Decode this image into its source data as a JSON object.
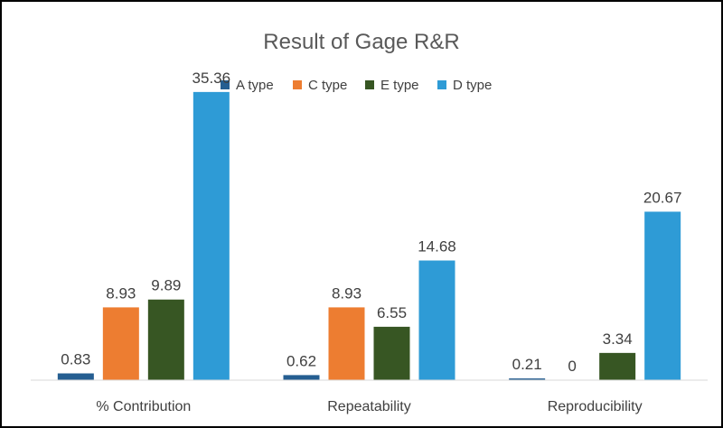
{
  "chart_data": {
    "type": "bar",
    "title": "Result of Gage R&R",
    "xlabel": "",
    "ylabel": "",
    "ylim": [
      0,
      40
    ],
    "grid": false,
    "legend": "top",
    "categories": [
      "% Contribution",
      "Repeatability",
      "Reproducibility"
    ],
    "series": [
      {
        "name": "A type",
        "color": "#255E91",
        "values": [
          0.83,
          0.62,
          0.21
        ],
        "labels": [
          "0.83",
          "0.62",
          "0.21"
        ]
      },
      {
        "name": "C type",
        "color": "#ED7D31",
        "values": [
          8.93,
          8.93,
          0
        ],
        "labels": [
          "8.93",
          "8.93",
          "0"
        ]
      },
      {
        "name": "E type",
        "color": "#375623",
        "values": [
          9.89,
          6.55,
          3.34
        ],
        "labels": [
          "9.89",
          "6.55",
          "3.34"
        ]
      },
      {
        "name": "D type",
        "color": "#2E9BD6",
        "values": [
          35.36,
          14.68,
          20.67
        ],
        "labels": [
          "35.36",
          "14.68",
          "20.67"
        ]
      }
    ]
  }
}
